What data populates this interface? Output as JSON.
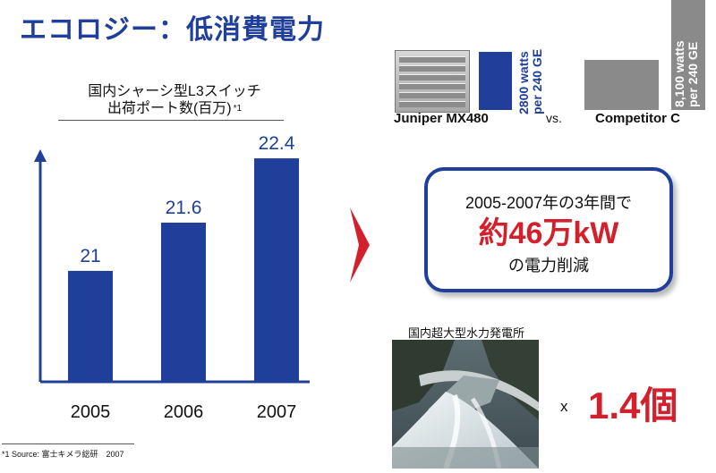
{
  "title": "エコロジー：低消費電力",
  "chart": {
    "caption_line1": "国内シャーシ型L3スイッチ",
    "caption_line2": "出荷ポート数(百万)",
    "caption_footnote_mark": "*1"
  },
  "chart_data": {
    "type": "bar",
    "categories": [
      "2005",
      "2006",
      "2007"
    ],
    "values": [
      21,
      21.6,
      22.4
    ],
    "data_labels": [
      "21",
      "21.6",
      "22.4"
    ],
    "bar_color": "#1f3f9a",
    "axis": "y-axis with arrow, no ticks, no grid"
  },
  "comparison": {
    "juniper_label": "Juniper MX480",
    "juniper_watts_line1": "2800 watts",
    "juniper_watts_line2": "per 240 GE",
    "vs": "vs.",
    "competitor_label": "Competitor C",
    "competitor_watts_line1": "8,100 watts",
    "competitor_watts_line2": "per 240 GE",
    "juniper_color": "#1f3f9a",
    "competitor_color": "#8a8a8a"
  },
  "savings": {
    "line1": "2005-2007年の3年間で",
    "line2": "約46万kW",
    "line3": "の電力削減"
  },
  "dam": {
    "caption": "国内超大型水力発電所",
    "x_label": "x",
    "multiplier": "1.4個"
  },
  "footnote": "*1 Source: 富士キメラ総研　2007",
  "colors": {
    "brand_blue": "#1f3f9a",
    "accent_red": "#d2202d"
  }
}
